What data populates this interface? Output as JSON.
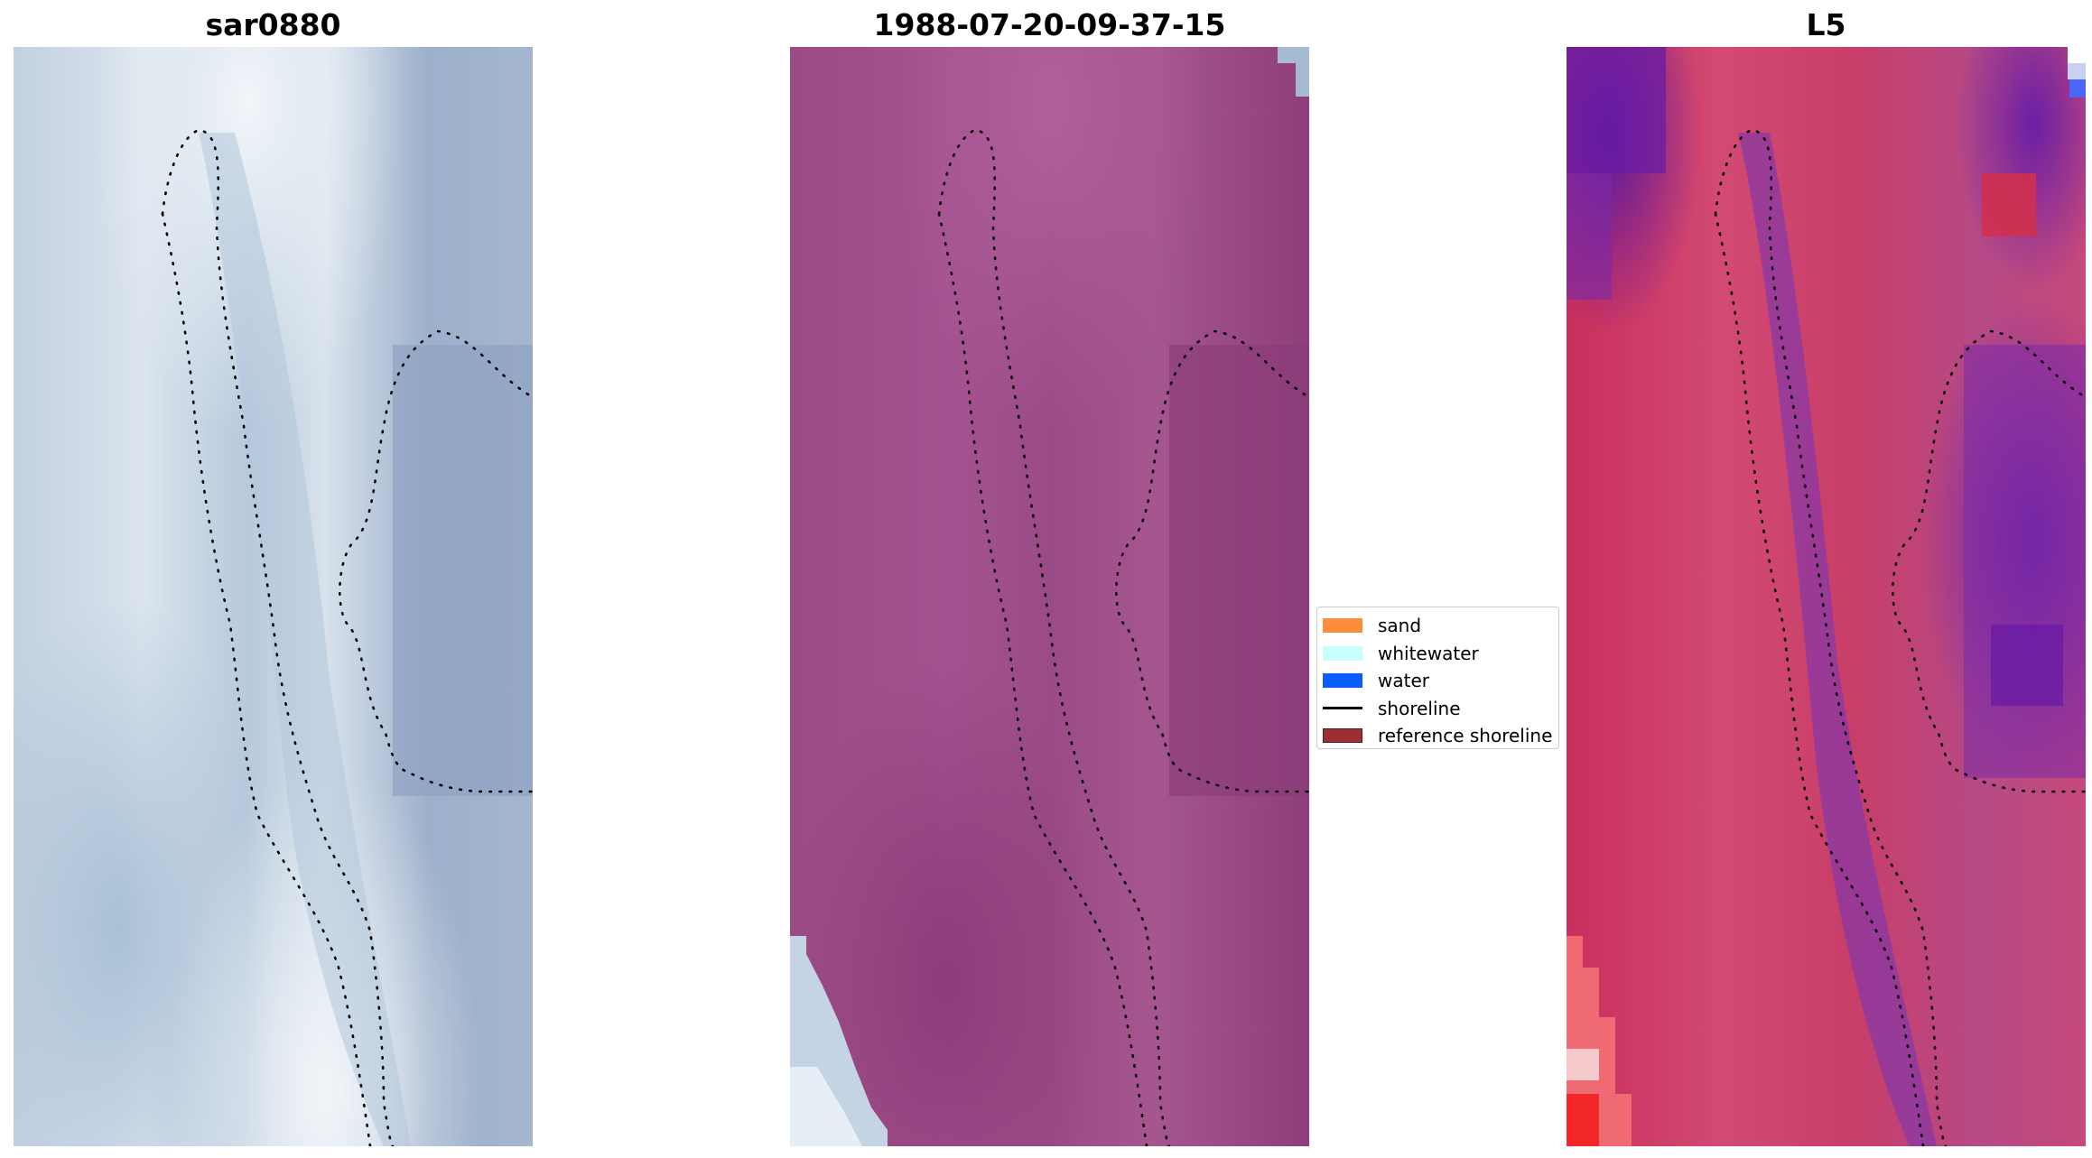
{
  "panels": [
    {
      "title": "sar0880"
    },
    {
      "title": "1988-07-20-09-37-15"
    },
    {
      "title": "L5"
    }
  ],
  "legend": {
    "items": [
      {
        "label": "sand",
        "color": "#ff8c3a",
        "kind": "patch"
      },
      {
        "label": "whitewater",
        "color": "#c8ffff",
        "kind": "patch"
      },
      {
        "label": "water",
        "color": "#0a5cff",
        "kind": "patch"
      },
      {
        "label": "shoreline",
        "color": "#000000",
        "kind": "line"
      },
      {
        "label": "reference shoreline",
        "color": "#9a3030",
        "kind": "patch"
      }
    ]
  },
  "colors": {
    "rgb_light": "#d4dfea",
    "rgb_mid": "#a9bdd3",
    "rgb_water": "#90a6c4",
    "classified_base": "#a14f88",
    "classified_dark": "#8b3b78",
    "ndwi_red": "#d0305e",
    "ndwi_purple": "#6a20a4"
  }
}
